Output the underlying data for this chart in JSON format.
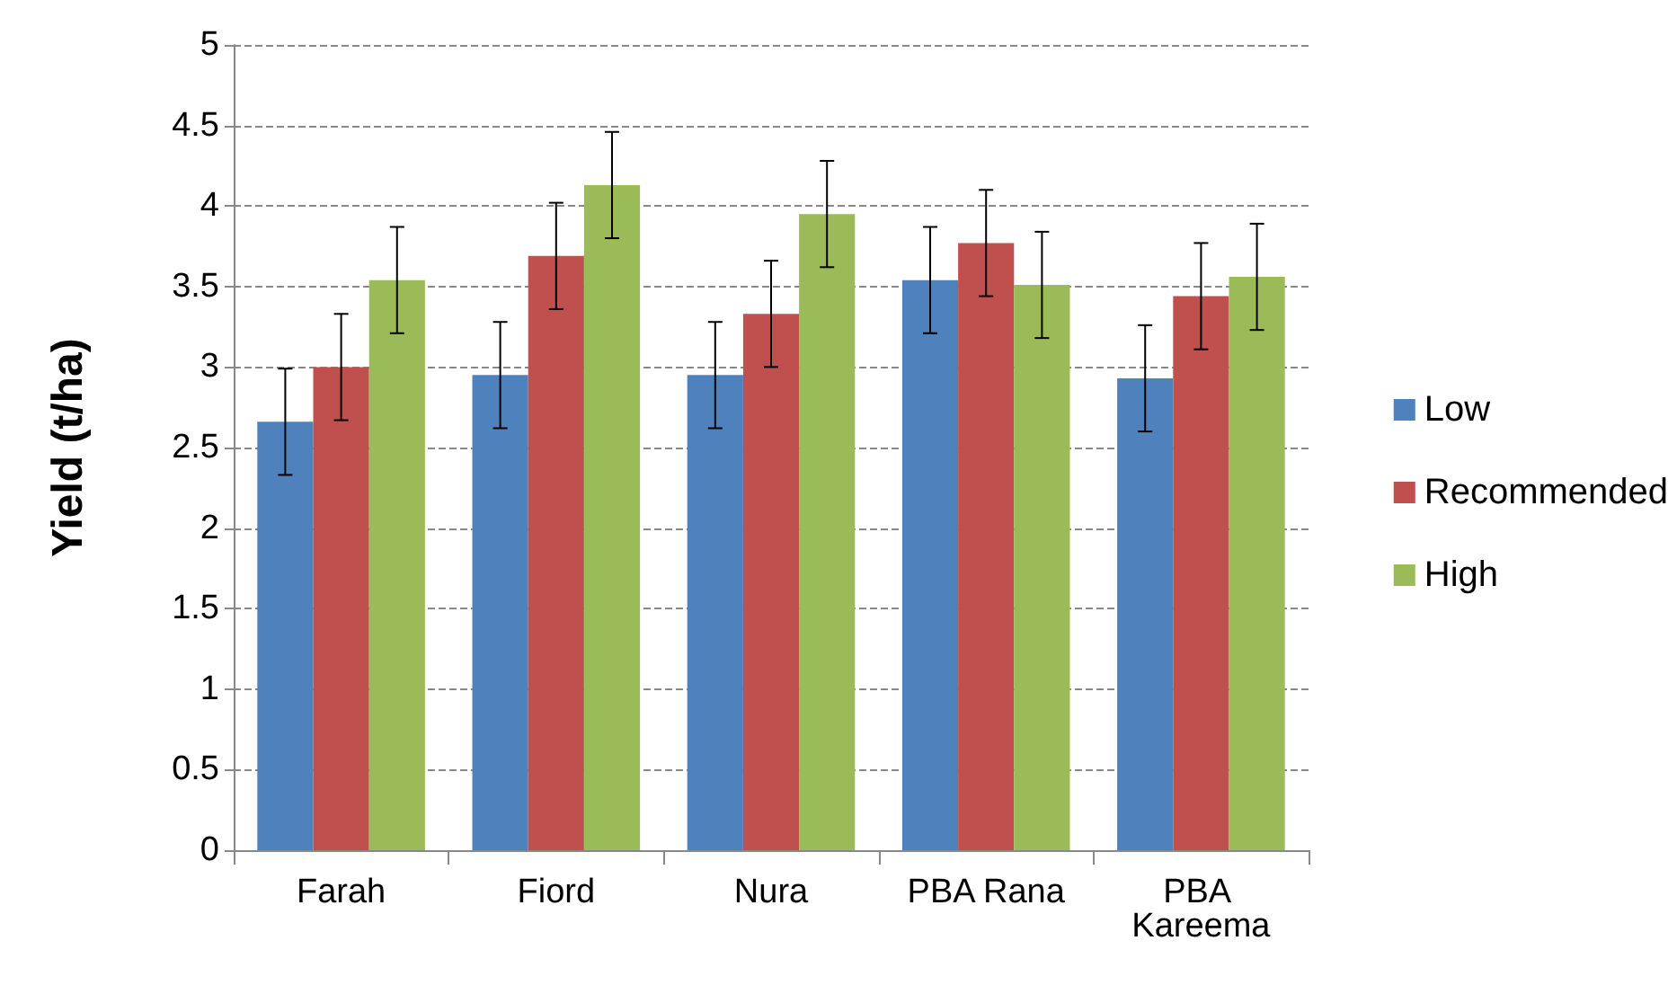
{
  "chart_data": {
    "type": "bar",
    "ylabel": "Yield (t/ha)",
    "categories": [
      "Farah",
      "Fiord",
      "Nura",
      "PBA Rana",
      "PBA Kareema"
    ],
    "series": [
      {
        "name": "Low",
        "color": "#4f81bd",
        "values": [
          2.66,
          2.95,
          2.95,
          3.54,
          2.93
        ],
        "errors": [
          0.33,
          0.33,
          0.33,
          0.33,
          0.33
        ]
      },
      {
        "name": "Recommended",
        "color": "#c0504d",
        "values": [
          3.0,
          3.69,
          3.33,
          3.77,
          3.44
        ],
        "errors": [
          0.33,
          0.33,
          0.33,
          0.33,
          0.33
        ]
      },
      {
        "name": "High",
        "color": "#9bbb59",
        "values": [
          3.54,
          4.13,
          3.95,
          3.51,
          3.56
        ],
        "errors": [
          0.33,
          0.33,
          0.33,
          0.33,
          0.33
        ]
      }
    ],
    "ylim": [
      0,
      5
    ],
    "yticks": [
      0,
      0.5,
      1,
      1.5,
      2,
      2.5,
      3,
      3.5,
      4,
      4.5,
      5
    ],
    "grid": "y",
    "legend": "right"
  }
}
